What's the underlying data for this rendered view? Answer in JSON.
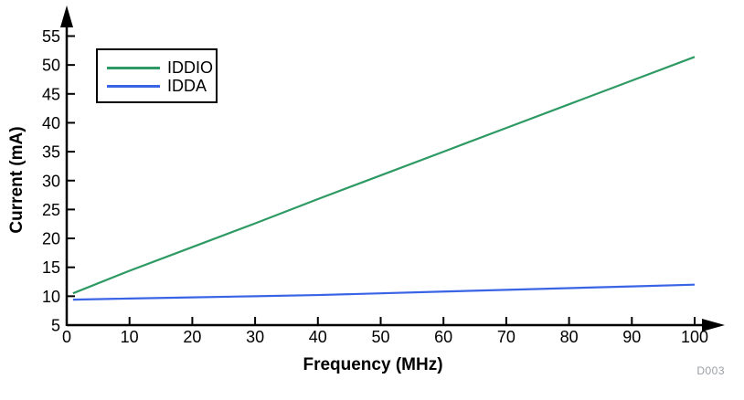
{
  "page": {
    "figure_id": "D003",
    "background": "#ffffff"
  },
  "chart_data": {
    "type": "line",
    "title": "",
    "xlabel": "Frequency (MHz)",
    "ylabel": "Current (mA)",
    "xlim": [
      0,
      100
    ],
    "ylim": [
      5,
      55
    ],
    "x_ticks": [
      0,
      10,
      20,
      30,
      40,
      50,
      60,
      70,
      80,
      90,
      100
    ],
    "y_ticks": [
      5,
      10,
      15,
      20,
      25,
      30,
      35,
      40,
      45,
      50,
      55
    ],
    "grid": false,
    "legend_position": "top-left",
    "axis_color": "#000000",
    "tick_label_color": "#000000",
    "series": [
      {
        "name": "IDDIO",
        "color": "#2e9a63",
        "x": [
          1,
          10,
          20,
          30,
          40,
          50,
          60,
          70,
          80,
          90,
          100
        ],
        "values": [
          10.5,
          14.4,
          18.5,
          22.6,
          26.8,
          30.9,
          35.0,
          39.1,
          43.2,
          47.3,
          51.4
        ]
      },
      {
        "name": "IDDA",
        "color": "#3a64e6",
        "x": [
          1,
          10,
          20,
          30,
          40,
          50,
          60,
          70,
          80,
          90,
          100
        ],
        "values": [
          9.4,
          9.6,
          9.8,
          10.0,
          10.2,
          10.5,
          10.8,
          11.1,
          11.4,
          11.7,
          12.0
        ]
      }
    ]
  }
}
